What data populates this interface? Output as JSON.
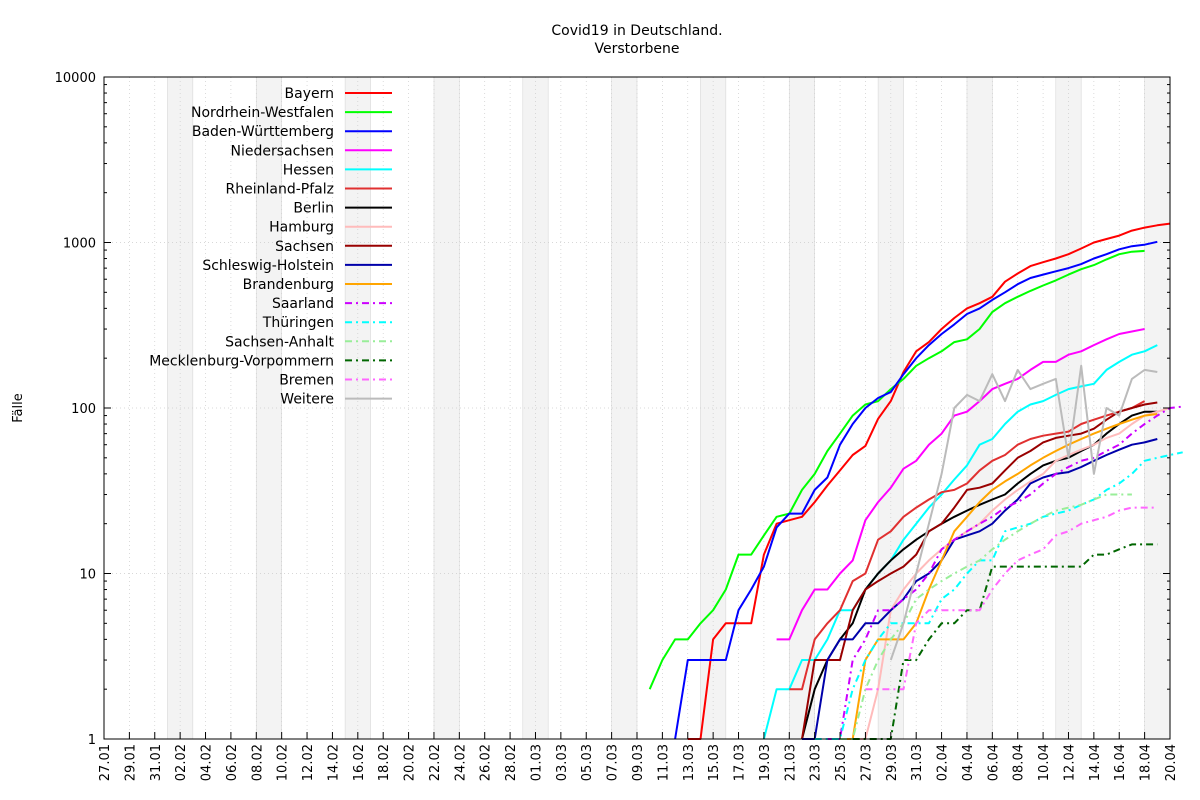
{
  "chart_data": {
    "type": "line",
    "title": "Covid19 in Deutschland.",
    "subtitle": "Verstorbene",
    "xlabel": "",
    "ylabel": "Fälle",
    "y_scale": "log",
    "ylim": [
      1,
      10000
    ],
    "y_ticks": [
      "1",
      "10",
      "100",
      "1000",
      "10000"
    ],
    "x_tick_labels": [
      "27.01",
      "29.01",
      "31.01",
      "02.02",
      "04.02",
      "06.02",
      "08.02",
      "10.02",
      "12.02",
      "14.02",
      "16.02",
      "18.02",
      "20.02",
      "22.02",
      "24.02",
      "26.02",
      "28.02",
      "01.03",
      "03.03",
      "05.03",
      "07.03",
      "09.03",
      "11.03",
      "13.03",
      "15.03",
      "17.03",
      "19.03",
      "21.03",
      "23.03",
      "25.03",
      "27.03",
      "29.03",
      "31.03",
      "02.04",
      "04.04",
      "06.04",
      "08.04",
      "10.04",
      "12.04",
      "14.04",
      "16.04",
      "18.04",
      "20.04"
    ],
    "x_start": "27.01",
    "grid": true,
    "weekend_shading": true,
    "legend_position": "top-left",
    "series": [
      {
        "name": "Bayern",
        "color": "#ff0000",
        "dash": "solid",
        "start": "13.03",
        "values": [
          1,
          1,
          4,
          5,
          5,
          5,
          13,
          20,
          21,
          22,
          27,
          34,
          42,
          52,
          59,
          86,
          110,
          165,
          220,
          250,
          300,
          350,
          400,
          430,
          470,
          580,
          650,
          720,
          760,
          800,
          850,
          920,
          1000,
          1050,
          1100,
          1180,
          1230,
          1270,
          1300
        ]
      },
      {
        "name": "Nordrhein-Westfalen",
        "color": "#00ff00",
        "dash": "solid",
        "start": "10.03",
        "values": [
          2,
          3,
          4,
          4,
          5,
          6,
          8,
          13,
          13,
          17,
          22,
          23,
          32,
          40,
          55,
          70,
          90,
          105,
          110,
          130,
          150,
          180,
          200,
          220,
          250,
          260,
          300,
          380,
          430,
          470,
          510,
          550,
          590,
          640,
          690,
          730,
          790,
          850,
          880,
          890
        ]
      },
      {
        "name": "Baden-Württemberg",
        "color": "#0000ff",
        "dash": "solid",
        "start": "12.03",
        "values": [
          1,
          3,
          3,
          3,
          3,
          6,
          8,
          11,
          19,
          23,
          23,
          32,
          38,
          60,
          80,
          100,
          115,
          125,
          160,
          200,
          240,
          280,
          320,
          370,
          400,
          450,
          500,
          560,
          610,
          640,
          670,
          700,
          740,
          800,
          850,
          910,
          950,
          970,
          1010
        ]
      },
      {
        "name": "Niedersachsen",
        "color": "#ff00ff",
        "dash": "solid",
        "start": "20.03",
        "values": [
          4,
          4,
          6,
          8,
          8,
          10,
          12,
          21,
          27,
          33,
          43,
          48,
          60,
          70,
          90,
          95,
          110,
          130,
          140,
          150,
          170,
          190,
          190,
          210,
          220,
          240,
          260,
          280,
          290,
          300
        ]
      },
      {
        "name": "Hessen",
        "color": "#00ffff",
        "dash": "solid",
        "start": "19.03",
        "values": [
          1,
          2,
          2,
          3,
          3,
          4,
          6,
          6,
          8,
          10,
          12,
          16,
          20,
          25,
          30,
          37,
          45,
          60,
          65,
          80,
          95,
          105,
          110,
          120,
          130,
          135,
          140,
          170,
          190,
          210,
          220,
          240
        ]
      },
      {
        "name": "Rheinland-Pfalz",
        "color": "#e03030",
        "dash": "solid",
        "start": "21.03",
        "values": [
          2,
          2,
          4,
          5,
          6,
          9,
          10,
          16,
          18,
          22,
          25,
          28,
          31,
          32,
          35,
          42,
          48,
          52,
          60,
          65,
          68,
          70,
          72,
          80,
          85,
          90,
          95,
          100,
          110
        ]
      },
      {
        "name": "Berlin",
        "color": "#000000",
        "dash": "solid",
        "start": "22.03",
        "values": [
          1,
          2,
          3,
          4,
          5,
          8,
          10,
          12,
          14,
          16,
          18,
          20,
          22,
          24,
          26,
          28,
          30,
          35,
          40,
          45,
          48,
          50,
          55,
          60,
          70,
          80,
          90,
          95,
          95
        ]
      },
      {
        "name": "Hamburg",
        "color": "#ffbbbb",
        "dash": "solid",
        "start": "24.03",
        "values": [
          1,
          1,
          1,
          1,
          2,
          6,
          8,
          10,
          12,
          14,
          16,
          18,
          20,
          24,
          28,
          32,
          36,
          40,
          48,
          52,
          56,
          60,
          66,
          70,
          80,
          90,
          95,
          100
        ]
      },
      {
        "name": "Sachsen",
        "color": "#990000",
        "dash": "solid",
        "start": "22.03",
        "values": [
          1,
          3,
          3,
          3,
          6,
          8,
          9,
          10,
          11,
          13,
          18,
          20,
          25,
          32,
          33,
          35,
          42,
          50,
          55,
          62,
          66,
          68,
          70,
          75,
          85,
          95,
          100,
          105,
          108
        ]
      },
      {
        "name": "Schleswig-Holstein",
        "color": "#0000aa",
        "dash": "solid",
        "start": "22.03",
        "values": [
          1,
          1,
          3,
          4,
          4,
          5,
          5,
          6,
          7,
          9,
          10,
          12,
          16,
          17,
          18,
          20,
          24,
          28,
          35,
          38,
          40,
          41,
          44,
          48,
          52,
          56,
          60,
          62,
          65
        ]
      },
      {
        "name": "Brandenburg",
        "color": "#ffa500",
        "dash": "solid",
        "start": "25.03",
        "values": [
          1,
          1,
          3,
          4,
          4,
          4,
          5,
          8,
          12,
          18,
          22,
          27,
          32,
          36,
          40,
          45,
          50,
          55,
          60,
          65,
          70,
          75,
          80,
          85,
          90,
          92
        ]
      },
      {
        "name": "Saarland",
        "color": "#cc00ff",
        "dash": "dashdot",
        "start": "24.03",
        "values": [
          1,
          1,
          3,
          4,
          6,
          6,
          7,
          8,
          10,
          14,
          16,
          18,
          20,
          22,
          25,
          27,
          30,
          35,
          40,
          44,
          48,
          50,
          55,
          60,
          70,
          80,
          90,
          100,
          102
        ]
      },
      {
        "name": "Thüringen",
        "color": "#00ffff",
        "dash": "dashdot",
        "start": "23.03",
        "values": [
          1,
          1,
          1,
          2,
          3,
          4,
          5,
          5,
          5,
          5,
          7,
          8,
          10,
          12,
          12,
          18,
          19,
          20,
          22,
          23,
          24,
          26,
          28,
          32,
          35,
          40,
          48,
          50,
          52,
          54
        ]
      },
      {
        "name": "Sachsen-Anhalt",
        "color": "#99ee99",
        "dash": "dashdot",
        "start": "25.03",
        "values": [
          1,
          1,
          2,
          3,
          4,
          5,
          7,
          8,
          9,
          10,
          11,
          12,
          14,
          16,
          18,
          20,
          22,
          24,
          25,
          26,
          28,
          30,
          30,
          30
        ]
      },
      {
        "name": "Mecklenburg-Vorpommern",
        "color": "#006600",
        "dash": "dashdot",
        "start": "26.03",
        "values": [
          1,
          1,
          1,
          1,
          3,
          3,
          4,
          5,
          5,
          6,
          6,
          11,
          11,
          11,
          11,
          11,
          11,
          11,
          11,
          13,
          13,
          14,
          15,
          15,
          15
        ]
      },
      {
        "name": "Bremen",
        "color": "#ff66ff",
        "dash": "dashdot",
        "start": "27.03",
        "values": [
          2,
          2,
          2,
          2,
          5,
          6,
          6,
          6,
          6,
          6,
          8,
          10,
          12,
          13,
          14,
          17,
          18,
          20,
          21,
          22,
          24,
          25,
          25,
          25
        ]
      },
      {
        "name": "Weitere",
        "color": "#bbbbbb",
        "dash": "solid",
        "start": "29.03",
        "values": [
          3,
          5,
          10,
          20,
          40,
          100,
          120,
          110,
          160,
          110,
          170,
          130,
          140,
          150,
          50,
          180,
          40,
          100,
          90,
          150,
          170,
          165
        ]
      }
    ]
  }
}
